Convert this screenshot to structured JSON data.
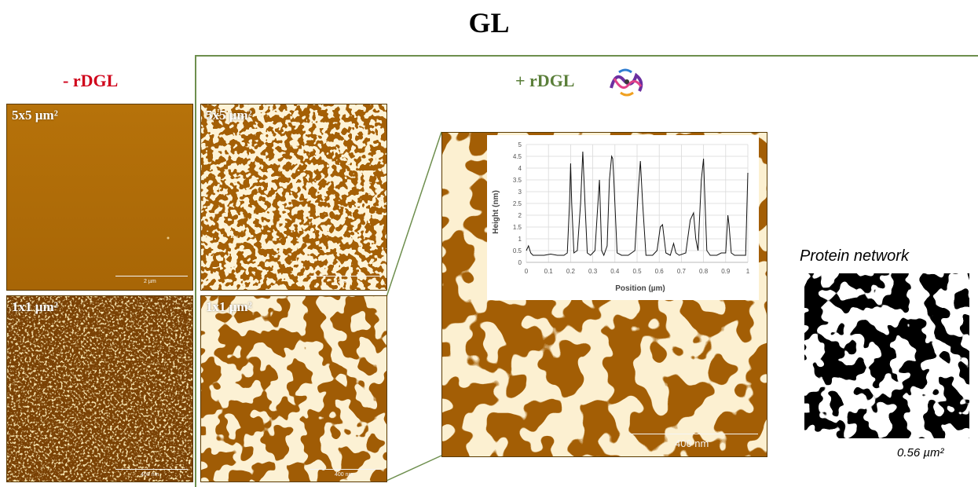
{
  "title": "GL",
  "minus_label": "- rDGL",
  "plus_label": "+ rDGL",
  "panels": {
    "minus_5x5": {
      "label": "5x5 µm²",
      "scale": "2 µm"
    },
    "minus_1x1": {
      "label": "1x1 µm²",
      "scale": "400 nm"
    },
    "plus_5x5": {
      "label": "5x5 µm²",
      "scale": "2 µm"
    },
    "plus_1x1": {
      "label": "1x1 µm²",
      "scale": "400 nm"
    },
    "zoom": {
      "scale": "400 nm"
    }
  },
  "protein_network": {
    "title": "Protein network",
    "area": "0.56 µm²"
  },
  "colors": {
    "afm_base": "#b06d07",
    "afm_dark": "#6b3a00",
    "afm_bright": "#f2e2b0",
    "divider": "#6e8f4e",
    "minus": "#d0021b",
    "plus": "#5b7f3a"
  },
  "chart_data": {
    "type": "line",
    "xlabel": "Position (µm)",
    "ylabel": "Height (nm)",
    "xlim": [
      0,
      1
    ],
    "ylim": [
      0,
      5
    ],
    "xticks": [
      "0",
      "0.1",
      "0.2",
      "0.3",
      "0.4",
      "0.5",
      "0.6",
      "0.7",
      "0.8",
      "0.9",
      "1"
    ],
    "yticks": [
      "0",
      "0.5",
      "1",
      "1.5",
      "2",
      "2.5",
      "3",
      "3.5",
      "4",
      "4.5",
      "5"
    ],
    "grid": true,
    "x": [
      0,
      0.01,
      0.02,
      0.03,
      0.05,
      0.08,
      0.11,
      0.14,
      0.17,
      0.185,
      0.195,
      0.2,
      0.205,
      0.215,
      0.23,
      0.245,
      0.255,
      0.265,
      0.275,
      0.29,
      0.31,
      0.32,
      0.33,
      0.34,
      0.35,
      0.365,
      0.375,
      0.385,
      0.39,
      0.395,
      0.41,
      0.43,
      0.46,
      0.49,
      0.505,
      0.515,
      0.525,
      0.54,
      0.57,
      0.59,
      0.605,
      0.615,
      0.63,
      0.65,
      0.665,
      0.675,
      0.69,
      0.72,
      0.74,
      0.755,
      0.765,
      0.775,
      0.79,
      0.8,
      0.805,
      0.815,
      0.83,
      0.86,
      0.88,
      0.9,
      0.91,
      0.915,
      0.925,
      0.94,
      0.96,
      0.98,
      0.99,
      1.0
    ],
    "y": [
      0.5,
      0.7,
      0.4,
      0.3,
      0.3,
      0.3,
      0.35,
      0.3,
      0.3,
      0.4,
      2.5,
      4.2,
      2.5,
      0.4,
      0.5,
      2.5,
      4.7,
      2.5,
      0.4,
      0.3,
      0.5,
      2.0,
      3.5,
      0.5,
      0.3,
      0.7,
      3.5,
      4.5,
      4.4,
      3.5,
      0.4,
      0.3,
      0.3,
      0.5,
      3.0,
      4.3,
      2.5,
      0.3,
      0.3,
      0.5,
      1.5,
      1.6,
      0.4,
      0.3,
      0.8,
      0.4,
      0.3,
      0.4,
      1.8,
      2.1,
      1.0,
      0.5,
      3.5,
      4.4,
      3.0,
      0.5,
      0.3,
      0.3,
      0.4,
      0.4,
      2.0,
      1.6,
      0.4,
      0.3,
      0.3,
      0.3,
      0.3,
      3.8
    ]
  }
}
